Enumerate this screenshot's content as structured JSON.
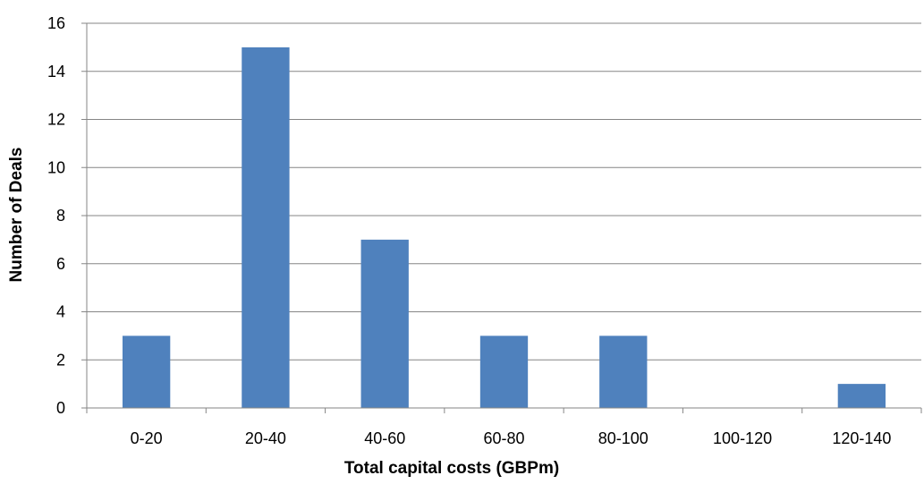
{
  "chart_data": {
    "type": "bar",
    "categories": [
      "0-20",
      "20-40",
      "40-60",
      "60-80",
      "80-100",
      "100-120",
      "120-140"
    ],
    "values": [
      3,
      15,
      7,
      3,
      3,
      0,
      1
    ],
    "title": "",
    "xlabel": "Total capital costs (GBPm)",
    "ylabel": "Number of Deals",
    "ylim": [
      0,
      16
    ],
    "yticks": [
      0,
      2,
      4,
      6,
      8,
      10,
      12,
      14,
      16
    ],
    "grid": true,
    "legend": "none",
    "bar_color": "#4f81bd"
  }
}
